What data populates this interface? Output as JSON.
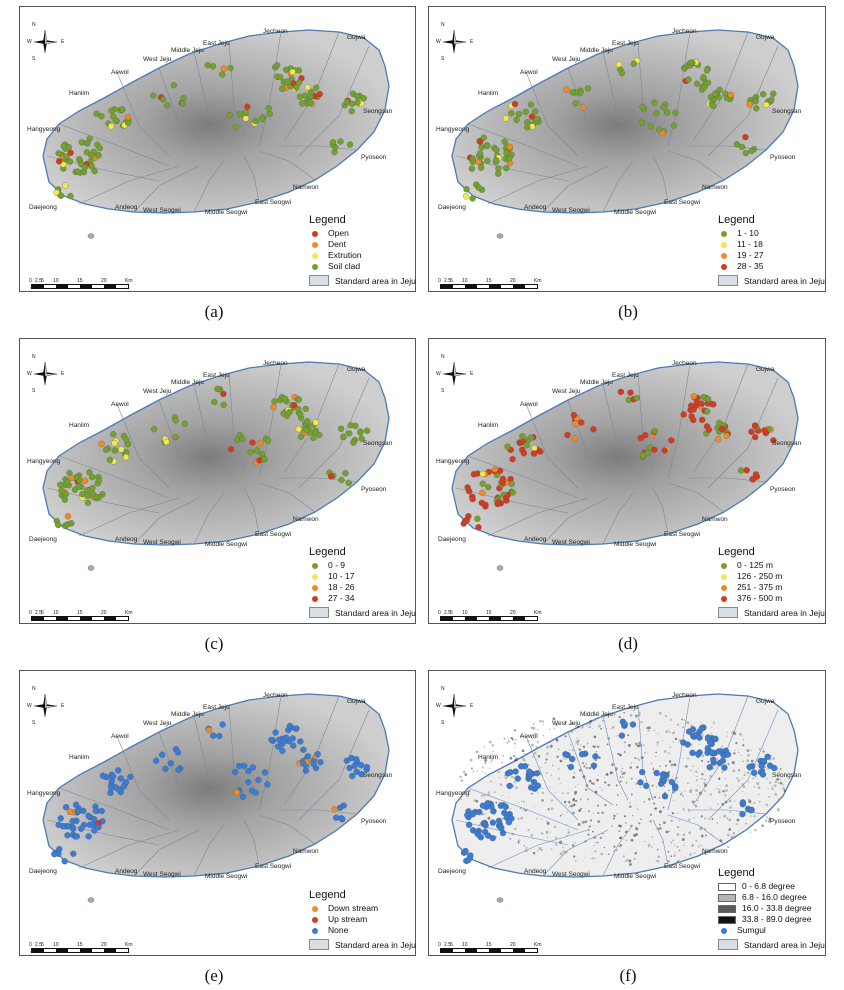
{
  "place_names": [
    "Jecheon",
    "Gujwa",
    "East Jeju",
    "Middle Jeju",
    "West Jeju",
    "Aewol",
    "Hanlim",
    "Hangyeong",
    "Seongsan",
    "Pyoseon",
    "Namwon",
    "East Seogwi",
    "Middle Seogwi",
    "West Seogwi",
    "Andeog",
    "Daejeong"
  ],
  "scale_labels": [
    "0",
    "2.5",
    "5",
    "10",
    "15",
    "20",
    "Km"
  ],
  "compass_labels": [
    "N",
    "S",
    "E",
    "W"
  ],
  "standard_area_label": "Standard area in Jeju",
  "panels": [
    {
      "id": "a",
      "caption": "(a)",
      "legend_title": "Legend",
      "items": [
        {
          "label": "Open",
          "color": "#d63a1e"
        },
        {
          "label": "Dent",
          "color": "#f08a24"
        },
        {
          "label": "Extrution",
          "color": "#f2e94a"
        },
        {
          "label": "Soil clad",
          "color": "#72a12e"
        }
      ]
    },
    {
      "id": "b",
      "caption": "(b)",
      "legend_title": "Legend",
      "items": [
        {
          "label": "1 - 10",
          "color": "#72a12e"
        },
        {
          "label": "11 - 18",
          "color": "#f2e94a"
        },
        {
          "label": "19 - 27",
          "color": "#f08a24"
        },
        {
          "label": "28 - 35",
          "color": "#d63a1e"
        }
      ]
    },
    {
      "id": "c",
      "caption": "(c)",
      "legend_title": "Legend",
      "items": [
        {
          "label": "0 - 9",
          "color": "#72a12e"
        },
        {
          "label": "10 - 17",
          "color": "#f2e94a"
        },
        {
          "label": "18 - 26",
          "color": "#f08a24"
        },
        {
          "label": "27 - 34",
          "color": "#d63a1e"
        }
      ]
    },
    {
      "id": "d",
      "caption": "(d)",
      "legend_title": "Legend",
      "items": [
        {
          "label": "0 - 125 m",
          "color": "#72a12e"
        },
        {
          "label": "126 - 250 m",
          "color": "#f2e94a"
        },
        {
          "label": "251 - 375 m",
          "color": "#f08a24"
        },
        {
          "label": "376 - 500 m",
          "color": "#d63a1e"
        }
      ]
    },
    {
      "id": "e",
      "caption": "(e)",
      "legend_title": "Legend",
      "items": [
        {
          "label": "Down stream",
          "color": "#f08a24"
        },
        {
          "label": "Up stream",
          "color": "#d63a1e"
        },
        {
          "label": "None",
          "color": "#3a7bd5"
        }
      ]
    },
    {
      "id": "f",
      "caption": "(f)",
      "legend_title": "Legend",
      "slope_items": [
        {
          "label": "0 - 6.8 degree",
          "color": "#ffffff"
        },
        {
          "label": "6.8 - 16.0 degree",
          "color": "#b5b5b5"
        },
        {
          "label": "16.0 - 33.8 degree",
          "color": "#5a5a5a"
        },
        {
          "label": "33.8 - 89.0 degree",
          "color": "#111111"
        }
      ],
      "items": [
        {
          "label": "Sumgul",
          "color": "#3a7bd5"
        }
      ]
    }
  ]
}
